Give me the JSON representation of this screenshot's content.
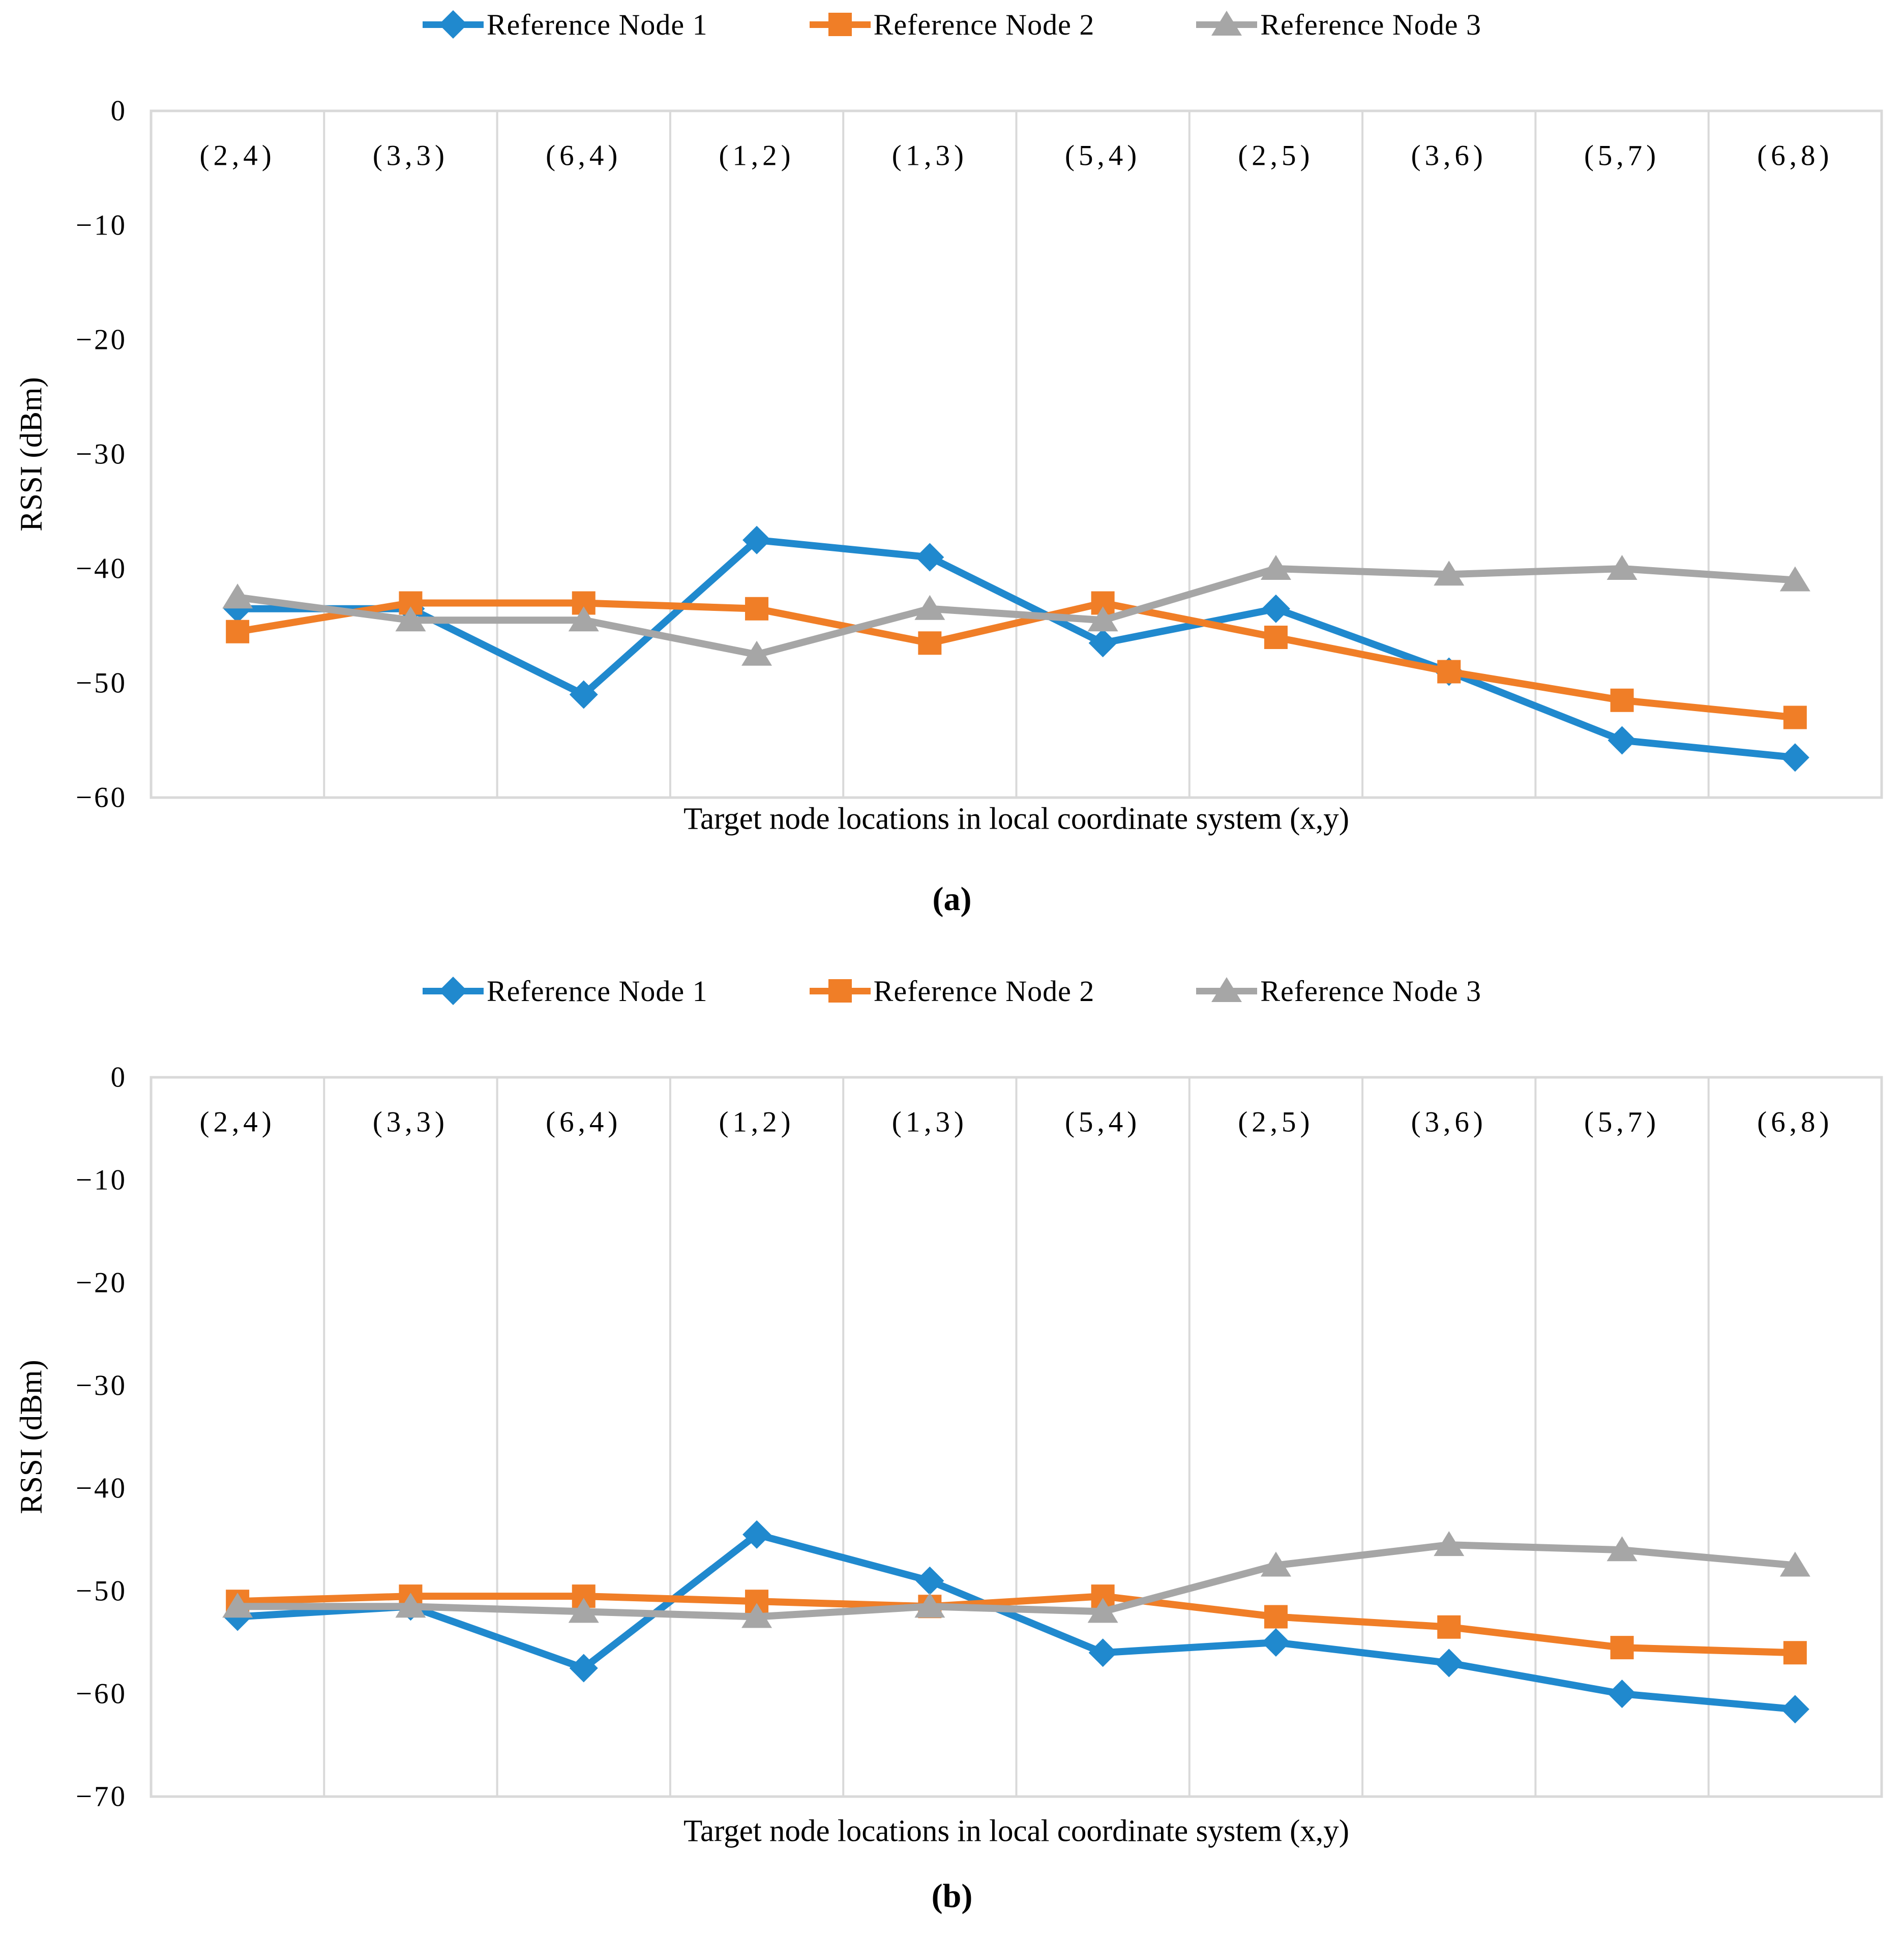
{
  "figure": {
    "background": "#ffffff",
    "grid_color": "#D9D9D9"
  },
  "chart_data": [
    {
      "id": "a",
      "type": "line",
      "caption": "(a)",
      "xlabel": "Target node locations in local coordinate system (x,y)",
      "ylabel": "RSSI (dBm)",
      "categories": [
        "(2,4)",
        "(3,3)",
        "(6,4)",
        "(1,2)",
        "(1,3)",
        "(5,4)",
        "(2,5)",
        "(3,6)",
        "(5,7)",
        "(6,8)"
      ],
      "ylim": [
        0,
        -60
      ],
      "yticks": [
        "0",
        "-10",
        "-20",
        "-30",
        "-40",
        "-50",
        "-60"
      ],
      "grid": "vertical-only",
      "legend_position": "top-center",
      "series": [
        {
          "name": "Reference Node 1",
          "marker": "diamond",
          "color": "#2089CE",
          "values": [
            -43.5,
            -43.5,
            -51,
            -37.5,
            -39,
            -46.5,
            -43.5,
            -49,
            -55,
            -56.5
          ]
        },
        {
          "name": "Reference Node 2",
          "marker": "square",
          "color": "#F07E27",
          "values": [
            -45.5,
            -43,
            -43,
            -43.5,
            -46.5,
            -43,
            -46,
            -49,
            -51.5,
            -53
          ]
        },
        {
          "name": "Reference Node 3",
          "marker": "triangle",
          "color": "#A6A6A6",
          "values": [
            -42.5,
            -44.5,
            -44.5,
            -47.5,
            -43.5,
            -44.5,
            -40,
            -40.5,
            -40,
            -41
          ]
        }
      ]
    },
    {
      "id": "b",
      "type": "line",
      "caption": "(b)",
      "xlabel": "Target node locations in local coordinate system (x,y)",
      "ylabel": "RSSI (dBm)",
      "categories": [
        "(2,4)",
        "(3,3)",
        "(6,4)",
        "(1,2)",
        "(1,3)",
        "(5,4)",
        "(2,5)",
        "(3,6)",
        "(5,7)",
        "(6,8)"
      ],
      "ylim": [
        0,
        -70
      ],
      "yticks": [
        "0",
        "-10",
        "-20",
        "-30",
        "-40",
        "-50",
        "-60",
        "-70"
      ],
      "grid": "vertical-only",
      "legend_position": "top-center",
      "series": [
        {
          "name": "Reference Node 1",
          "marker": "diamond",
          "color": "#2089CE",
          "values": [
            -52.5,
            -51.5,
            -57.5,
            -44.5,
            -49,
            -56,
            -55,
            -57,
            -60,
            -61.5
          ]
        },
        {
          "name": "Reference Node 2",
          "marker": "square",
          "color": "#F07E27",
          "values": [
            -51,
            -50.5,
            -50.5,
            -51,
            -51.5,
            -50.5,
            -52.5,
            -53.5,
            -55.5,
            -56
          ]
        },
        {
          "name": "Reference Node 3",
          "marker": "triangle",
          "color": "#A6A6A6",
          "values": [
            -51.5,
            -51.5,
            -52,
            -52.5,
            -51.5,
            -52,
            -47.5,
            -45.5,
            -46,
            -47.5
          ]
        }
      ]
    }
  ]
}
